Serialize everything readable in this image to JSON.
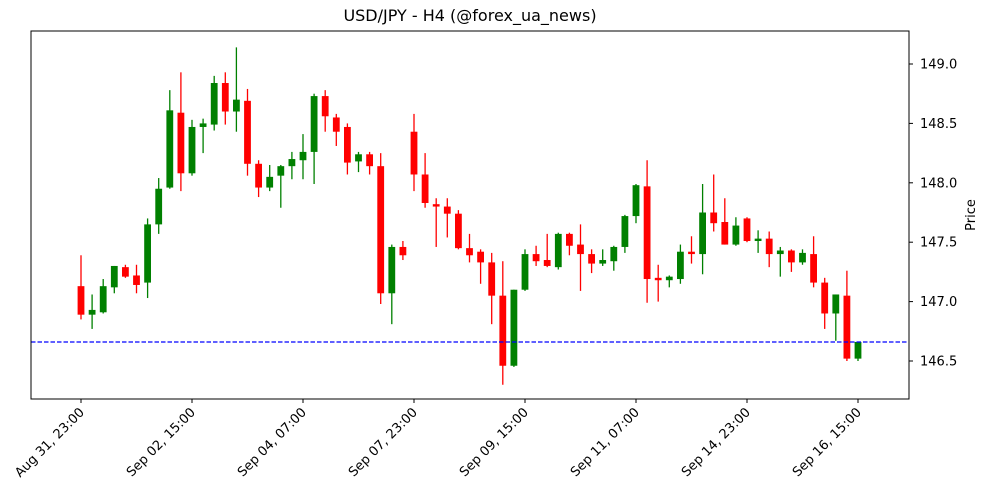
{
  "chart_data": {
    "type": "candlestick",
    "title": "USD/JPY - H4 (@forex_ua_news)",
    "xlabel": "",
    "ylabel": "Price",
    "ylim": [
      146.16,
      149.28
    ],
    "yticks": [
      "146.5",
      "147.0",
      "147.5",
      "148.0",
      "148.5",
      "149.0"
    ],
    "ytick_values": [
      146.5,
      147.0,
      147.5,
      148.0,
      148.5,
      149.0
    ],
    "xtick_labels": [
      "Aug 31, 23:00",
      "Sep 02, 15:00",
      "Sep 04, 07:00",
      "Sep 07, 23:00",
      "Sep 09, 15:00",
      "Sep 11, 07:00",
      "Sep 14, 23:00",
      "Sep 16, 15:00"
    ],
    "xtick_indices": [
      0,
      10,
      20,
      30,
      40,
      50,
      60,
      70
    ],
    "grid": false,
    "legend": null,
    "colors": {
      "up": "#008000",
      "down": "#ff0000",
      "hline": "#0000ff"
    },
    "hline": {
      "value": 146.66,
      "style": "dashed",
      "color": "#0000ff"
    },
    "candles": [
      {
        "o": 147.13,
        "h": 147.39,
        "l": 146.85,
        "c": 146.89
      },
      {
        "o": 146.89,
        "h": 147.06,
        "l": 146.77,
        "c": 146.93
      },
      {
        "o": 146.91,
        "h": 147.19,
        "l": 146.9,
        "c": 147.13
      },
      {
        "o": 147.12,
        "h": 147.3,
        "l": 147.07,
        "c": 147.3
      },
      {
        "o": 147.29,
        "h": 147.31,
        "l": 147.2,
        "c": 147.21
      },
      {
        "o": 147.22,
        "h": 147.31,
        "l": 147.07,
        "c": 147.14
      },
      {
        "o": 147.16,
        "h": 147.7,
        "l": 147.03,
        "c": 147.65
      },
      {
        "o": 147.65,
        "h": 148.04,
        "l": 147.57,
        "c": 147.95
      },
      {
        "o": 147.96,
        "h": 148.78,
        "l": 147.95,
        "c": 148.61
      },
      {
        "o": 148.59,
        "h": 148.93,
        "l": 147.93,
        "c": 148.08
      },
      {
        "o": 148.08,
        "h": 148.53,
        "l": 148.06,
        "c": 148.47
      },
      {
        "o": 148.47,
        "h": 148.54,
        "l": 148.25,
        "c": 148.5
      },
      {
        "o": 148.49,
        "h": 148.9,
        "l": 148.44,
        "c": 148.84
      },
      {
        "o": 148.84,
        "h": 148.93,
        "l": 148.49,
        "c": 148.6
      },
      {
        "o": 148.6,
        "h": 149.14,
        "l": 148.43,
        "c": 148.7
      },
      {
        "o": 148.69,
        "h": 148.79,
        "l": 148.06,
        "c": 148.16
      },
      {
        "o": 148.16,
        "h": 148.19,
        "l": 147.88,
        "c": 147.96
      },
      {
        "o": 147.96,
        "h": 148.15,
        "l": 147.93,
        "c": 148.05
      },
      {
        "o": 148.06,
        "h": 148.15,
        "l": 147.79,
        "c": 148.14
      },
      {
        "o": 148.14,
        "h": 148.26,
        "l": 148.03,
        "c": 148.2
      },
      {
        "o": 148.19,
        "h": 148.41,
        "l": 148.03,
        "c": 148.26
      },
      {
        "o": 148.26,
        "h": 148.75,
        "l": 147.99,
        "c": 148.73
      },
      {
        "o": 148.73,
        "h": 148.78,
        "l": 148.43,
        "c": 148.56
      },
      {
        "o": 148.55,
        "h": 148.58,
        "l": 148.31,
        "c": 148.43
      },
      {
        "o": 148.47,
        "h": 148.5,
        "l": 148.07,
        "c": 148.17
      },
      {
        "o": 148.18,
        "h": 148.26,
        "l": 148.09,
        "c": 148.24
      },
      {
        "o": 148.24,
        "h": 148.26,
        "l": 148.07,
        "c": 148.14
      },
      {
        "o": 148.14,
        "h": 148.25,
        "l": 146.98,
        "c": 147.07
      },
      {
        "o": 147.07,
        "h": 147.48,
        "l": 146.81,
        "c": 147.46
      },
      {
        "o": 147.46,
        "h": 147.51,
        "l": 147.35,
        "c": 147.39
      },
      {
        "o": 148.43,
        "h": 148.58,
        "l": 147.93,
        "c": 148.07
      },
      {
        "o": 148.07,
        "h": 148.25,
        "l": 147.79,
        "c": 147.83
      },
      {
        "o": 147.82,
        "h": 147.87,
        "l": 147.46,
        "c": 147.8
      },
      {
        "o": 147.8,
        "h": 147.87,
        "l": 147.54,
        "c": 147.74
      },
      {
        "o": 147.74,
        "h": 147.77,
        "l": 147.44,
        "c": 147.45
      },
      {
        "o": 147.45,
        "h": 147.57,
        "l": 147.33,
        "c": 147.39
      },
      {
        "o": 147.42,
        "h": 147.44,
        "l": 147.15,
        "c": 147.33
      },
      {
        "o": 147.33,
        "h": 147.41,
        "l": 146.81,
        "c": 147.05
      },
      {
        "o": 147.05,
        "h": 147.34,
        "l": 146.3,
        "c": 146.46
      },
      {
        "o": 146.46,
        "h": 147.1,
        "l": 146.45,
        "c": 147.1
      },
      {
        "o": 147.1,
        "h": 147.44,
        "l": 147.09,
        "c": 147.4
      },
      {
        "o": 147.4,
        "h": 147.47,
        "l": 147.3,
        "c": 147.34
      },
      {
        "o": 147.35,
        "h": 147.57,
        "l": 147.29,
        "c": 147.3
      },
      {
        "o": 147.29,
        "h": 147.58,
        "l": 147.27,
        "c": 147.57
      },
      {
        "o": 147.57,
        "h": 147.58,
        "l": 147.39,
        "c": 147.47
      },
      {
        "o": 147.48,
        "h": 147.65,
        "l": 147.09,
        "c": 147.4
      },
      {
        "o": 147.4,
        "h": 147.44,
        "l": 147.24,
        "c": 147.32
      },
      {
        "o": 147.32,
        "h": 147.44,
        "l": 147.3,
        "c": 147.35
      },
      {
        "o": 147.34,
        "h": 147.47,
        "l": 147.26,
        "c": 147.46
      },
      {
        "o": 147.46,
        "h": 147.73,
        "l": 147.41,
        "c": 147.72
      },
      {
        "o": 147.72,
        "h": 147.99,
        "l": 147.66,
        "c": 147.98
      },
      {
        "o": 147.97,
        "h": 148.19,
        "l": 146.99,
        "c": 147.19
      },
      {
        "o": 147.2,
        "h": 147.31,
        "l": 147.0,
        "c": 147.18
      },
      {
        "o": 147.18,
        "h": 147.22,
        "l": 147.12,
        "c": 147.21
      },
      {
        "o": 147.19,
        "h": 147.48,
        "l": 147.15,
        "c": 147.42
      },
      {
        "o": 147.42,
        "h": 147.55,
        "l": 147.32,
        "c": 147.4
      },
      {
        "o": 147.4,
        "h": 147.99,
        "l": 147.23,
        "c": 147.75
      },
      {
        "o": 147.75,
        "h": 148.07,
        "l": 147.59,
        "c": 147.66
      },
      {
        "o": 147.67,
        "h": 147.87,
        "l": 147.48,
        "c": 147.48
      },
      {
        "o": 147.48,
        "h": 147.71,
        "l": 147.47,
        "c": 147.64
      },
      {
        "o": 147.7,
        "h": 147.71,
        "l": 147.5,
        "c": 147.51
      },
      {
        "o": 147.51,
        "h": 147.6,
        "l": 147.41,
        "c": 147.53
      },
      {
        "o": 147.53,
        "h": 147.59,
        "l": 147.29,
        "c": 147.4
      },
      {
        "o": 147.4,
        "h": 147.46,
        "l": 147.21,
        "c": 147.43
      },
      {
        "o": 147.43,
        "h": 147.44,
        "l": 147.25,
        "c": 147.33
      },
      {
        "o": 147.33,
        "h": 147.44,
        "l": 147.31,
        "c": 147.41
      },
      {
        "o": 147.4,
        "h": 147.55,
        "l": 147.12,
        "c": 147.16
      },
      {
        "o": 147.16,
        "h": 147.2,
        "l": 146.77,
        "c": 146.9
      },
      {
        "o": 146.9,
        "h": 147.06,
        "l": 146.67,
        "c": 147.06
      },
      {
        "o": 147.05,
        "h": 147.26,
        "l": 146.5,
        "c": 146.52
      },
      {
        "o": 146.52,
        "h": 146.66,
        "l": 146.5,
        "c": 146.66
      }
    ]
  }
}
